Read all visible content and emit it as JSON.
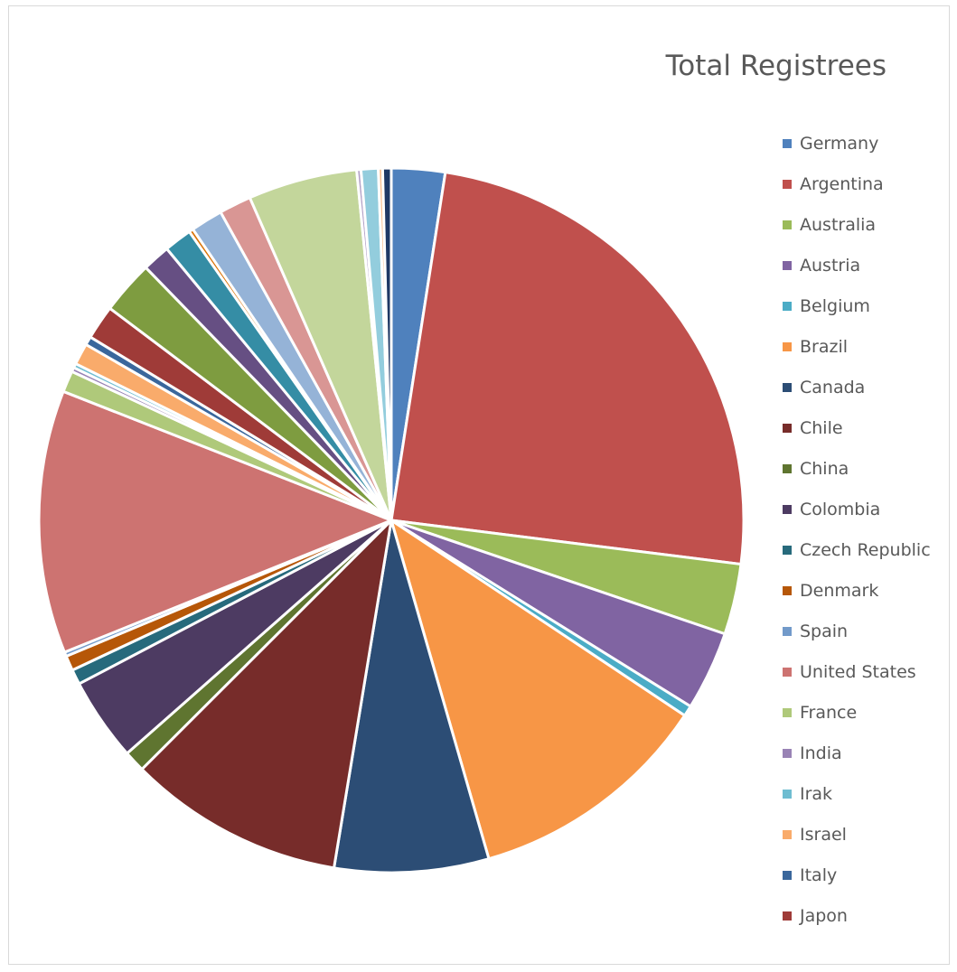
{
  "chart_data": {
    "type": "pie",
    "title": "Total Registrees",
    "start_angle_deg": 0,
    "slices": [
      {
        "label": "Germany",
        "value": 2.5,
        "color": "#4f81bd"
      },
      {
        "label": "Argentina",
        "value": 25.0,
        "color": "#c0504d"
      },
      {
        "label": "Australia",
        "value": 3.3,
        "color": "#9bbb59"
      },
      {
        "label": "Austria",
        "value": 3.7,
        "color": "#8064a2"
      },
      {
        "label": "Belgium",
        "value": 0.5,
        "color": "#4bacc6"
      },
      {
        "label": "Brazil",
        "value": 11.4,
        "color": "#f79646"
      },
      {
        "label": "Canada",
        "value": 7.2,
        "color": "#2c4d75"
      },
      {
        "label": "Chile",
        "value": 10.1,
        "color": "#772c2a"
      },
      {
        "label": "China",
        "value": 1.0,
        "color": "#5f7530"
      },
      {
        "label": "Colombia",
        "value": 3.9,
        "color": "#4d3b62"
      },
      {
        "label": "Czech Republic",
        "value": 0.7,
        "color": "#276a7c"
      },
      {
        "label": "Denmark",
        "value": 0.7,
        "color": "#b65708"
      },
      {
        "label": "Spain",
        "value": 0.2,
        "color": "#729aca"
      },
      {
        "label": "United States",
        "value": 12.3,
        "color": "#cd7371"
      },
      {
        "label": "France",
        "value": 1.0,
        "color": "#afc97a"
      },
      {
        "label": "India",
        "value": 0.2,
        "color": "#9983b5"
      },
      {
        "label": "Irak",
        "value": 0.2,
        "color": "#6fbdd1"
      },
      {
        "label": "Israel",
        "value": 1.0,
        "color": "#f9ab6b"
      },
      {
        "label": "Italy",
        "value": 0.4,
        "color": "#3a679c"
      },
      {
        "label": "Japon",
        "value": 1.6,
        "color": "#9f3b38"
      },
      {
        "label": "",
        "value": 2.5,
        "color": "#7e9c40"
      },
      {
        "label": "",
        "value": 1.3,
        "color": "#664f83"
      },
      {
        "label": "",
        "value": 1.3,
        "color": "#358da5"
      },
      {
        "label": "",
        "value": 0.2,
        "color": "#da7409"
      },
      {
        "label": "",
        "value": 1.5,
        "color": "#95b3d7"
      },
      {
        "label": "",
        "value": 1.5,
        "color": "#d99694"
      },
      {
        "label": "",
        "value": 5.1,
        "color": "#c3d69b"
      },
      {
        "label": "",
        "value": 0.2,
        "color": "#b3a2c7"
      },
      {
        "label": "",
        "value": 0.8,
        "color": "#93cddd"
      },
      {
        "label": "",
        "value": 0.2,
        "color": "#fac090"
      },
      {
        "label": "",
        "value": 0.4,
        "color": "#1f3864"
      }
    ],
    "legend_position": "right",
    "legend_visible_count": 20
  }
}
